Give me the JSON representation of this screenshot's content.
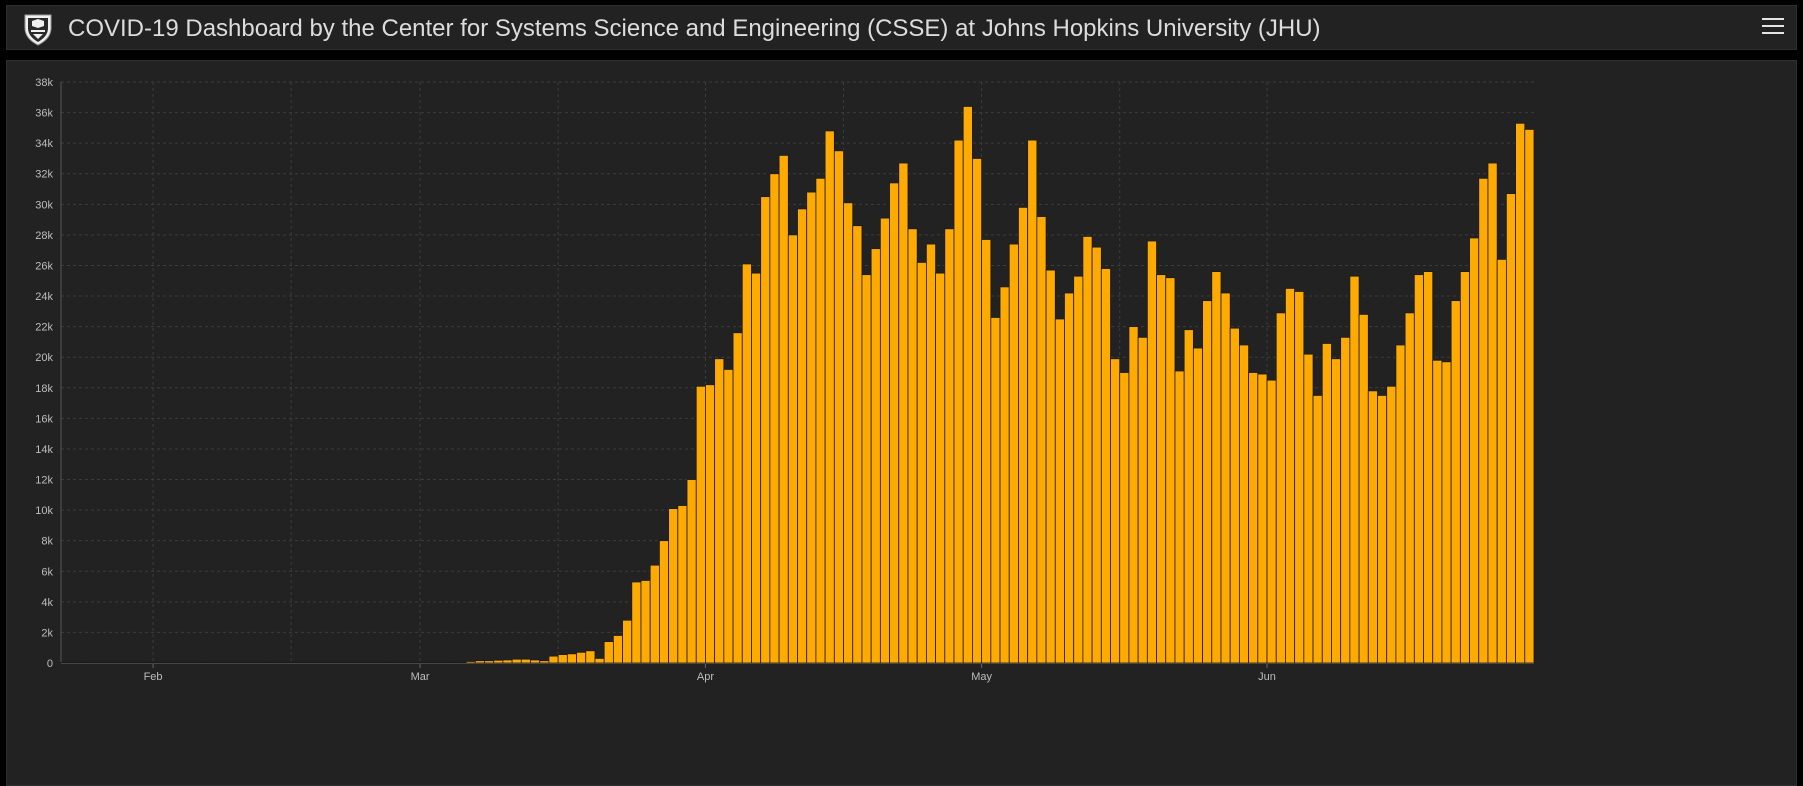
{
  "header": {
    "title": "COVID-19 Dashboard by the Center for Systems Science and Engineering (CSSE) at Johns Hopkins University (JHU)",
    "logo_icon": "university-shield-icon",
    "menu_icon": "hamburger-menu-icon"
  },
  "colors": {
    "bar": "#ffaa00",
    "bar_stroke": "#1a1a1a",
    "background": "#222222",
    "grid": "#3c3c3c"
  },
  "chart_data": {
    "type": "bar",
    "title": "",
    "xlabel": "",
    "ylabel": "",
    "grid": true,
    "x_start": "2020-01-22",
    "x_end": "2020-06-08",
    "x_tick_labels": [
      {
        "date": "2020-02-01",
        "label": "Feb"
      },
      {
        "date": "2020-03-01",
        "label": "Mar"
      },
      {
        "date": "2020-04-01",
        "label": "Apr"
      },
      {
        "date": "2020-05-01",
        "label": "May"
      },
      {
        "date": "2020-06-01",
        "label": "Jun"
      }
    ],
    "x_grid_dates": [
      "2020-01-22",
      "2020-02-01",
      "2020-02-16",
      "2020-03-01",
      "2020-03-16",
      "2020-04-01",
      "2020-04-16",
      "2020-05-01",
      "2020-05-16",
      "2020-06-01"
    ],
    "ylim": [
      0,
      38000
    ],
    "y_ticks": [
      0,
      2000,
      4000,
      6000,
      8000,
      10000,
      12000,
      14000,
      16000,
      18000,
      20000,
      22000,
      24000,
      26000,
      28000,
      30000,
      32000,
      34000,
      36000,
      38000
    ],
    "y_tick_labels": [
      "0",
      "2k",
      "4k",
      "6k",
      "8k",
      "10k",
      "12k",
      "14k",
      "16k",
      "18k",
      "20k",
      "22k",
      "24k",
      "26k",
      "28k",
      "30k",
      "32k",
      "34k",
      "36k",
      "38k"
    ],
    "values": [
      0,
      0,
      0,
      0,
      0,
      0,
      0,
      0,
      0,
      0,
      0,
      0,
      0,
      0,
      0,
      0,
      0,
      0,
      0,
      0,
      0,
      0,
      0,
      0,
      0,
      0,
      0,
      0,
      0,
      0,
      0,
      0,
      0,
      0,
      0,
      0,
      0,
      0,
      0,
      0,
      0,
      0,
      0,
      0,
      100,
      150,
      150,
      180,
      200,
      250,
      250,
      200,
      150,
      450,
      550,
      600,
      700,
      800,
      300,
      1400,
      1800,
      2800,
      5300,
      5400,
      6400,
      8000,
      10100,
      10300,
      12000,
      18100,
      18200,
      19900,
      19200,
      21600,
      26100,
      25500,
      30500,
      32000,
      33200,
      28000,
      29700,
      30800,
      31700,
      34800,
      33500,
      30100,
      28600,
      25400,
      27100,
      29100,
      31400,
      32700,
      28400,
      26200,
      27400,
      25500,
      28400,
      34200,
      36400,
      33000,
      27700,
      22600,
      24600,
      27400,
      29800,
      34200,
      29200,
      25700,
      22500,
      24200,
      25300,
      27900,
      27200,
      25800,
      19900,
      19000,
      22000,
      21300,
      27600,
      25400,
      25200,
      19100,
      21800,
      20600,
      23700,
      25600,
      24200,
      21900,
      20800,
      19000,
      18900,
      18500,
      22900,
      24500,
      24300,
      20200,
      17500,
      20900,
      19900,
      21300,
      25300,
      22800,
      17800,
      17500,
      18100,
      20800,
      22900,
      25400,
      25600,
      19800,
      19700,
      23700,
      25600,
      27800,
      31700,
      32700,
      26400,
      30700,
      35300,
      34900
    ]
  }
}
